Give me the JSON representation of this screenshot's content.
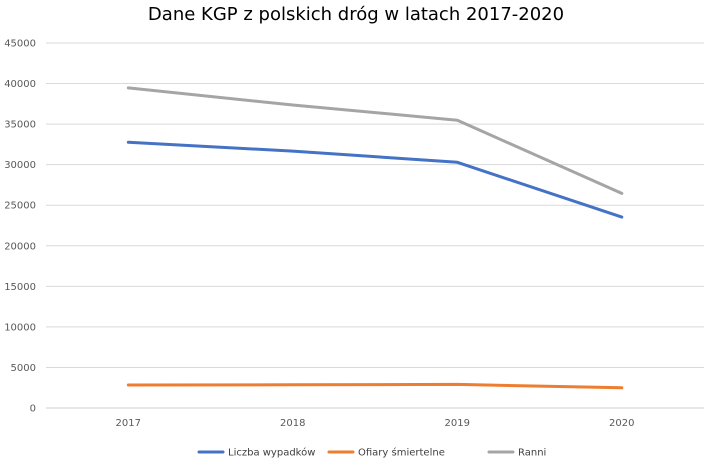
{
  "chart_data": {
    "type": "line",
    "title": "Dane KGP z polskich dróg w latach 2017-2020",
    "xlabel": "",
    "ylabel": "",
    "categories": [
      "2017",
      "2018",
      "2019",
      "2020"
    ],
    "ylim": [
      0,
      45000
    ],
    "yticks": [
      "0",
      "5000",
      "10000",
      "15000",
      "20000",
      "25000",
      "30000",
      "35000",
      "40000",
      "45000"
    ],
    "grid": true,
    "legend_position": "bottom",
    "series": [
      {
        "name": "Liczba wypadków",
        "color": "#4472C4",
        "values": [
          32760,
          31670,
          30290,
          23540
        ]
      },
      {
        "name": "Ofiary śmiertelne",
        "color": "#ED7D31",
        "values": [
          2830,
          2860,
          2910,
          2490
        ]
      },
      {
        "name": "Ranni",
        "color": "#A5A5A5",
        "values": [
          39470,
          37360,
          35480,
          26460
        ]
      }
    ]
  }
}
